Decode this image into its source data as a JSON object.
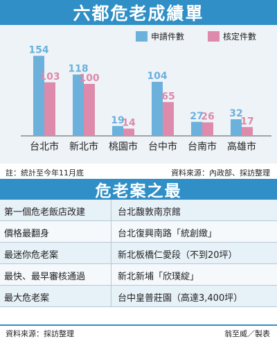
{
  "chart_title": "六都危老成績單",
  "legend": {
    "applications": "申請件數",
    "approved": "核定件數"
  },
  "colors": {
    "applications": "#6bb1dc",
    "approved": "#dd8aab",
    "header": "#2f8fc6"
  },
  "chart_data": {
    "type": "bar",
    "title": "六都危老成績單",
    "categories": [
      "台北市",
      "新北市",
      "桃園市",
      "台中市",
      "台南市",
      "高雄市"
    ],
    "series": [
      {
        "name": "申請件數",
        "values": [
          154,
          118,
          19,
          104,
          27,
          32
        ]
      },
      {
        "name": "核定件數",
        "values": [
          103,
          100,
          14,
          65,
          26,
          17
        ]
      }
    ],
    "ylim": [
      0,
      160
    ],
    "grid": false,
    "legend_position": "top-right"
  },
  "note": "註：統計至今年11月底",
  "chart_source": "資料來源：內政部、採訪整理",
  "table_title": "危老案之最",
  "records": [
    {
      "label": "第一個危老飯店改建",
      "value": "台北馥敦南京館"
    },
    {
      "label": "價格最翻身",
      "value": "台北復興南路「統創緻」"
    },
    {
      "label": "最迷你危老案",
      "value": "新北板橋仁愛段（不到20坪）"
    },
    {
      "label": "最快、最早審核通過",
      "value": "新北新埔「欣璞綻」"
    },
    {
      "label": "最大危老案",
      "value": "台中皇普莊園（高達3,400坪）"
    }
  ],
  "footer_source": "資料來源：採訪整理",
  "credit": "翁至威／製表"
}
